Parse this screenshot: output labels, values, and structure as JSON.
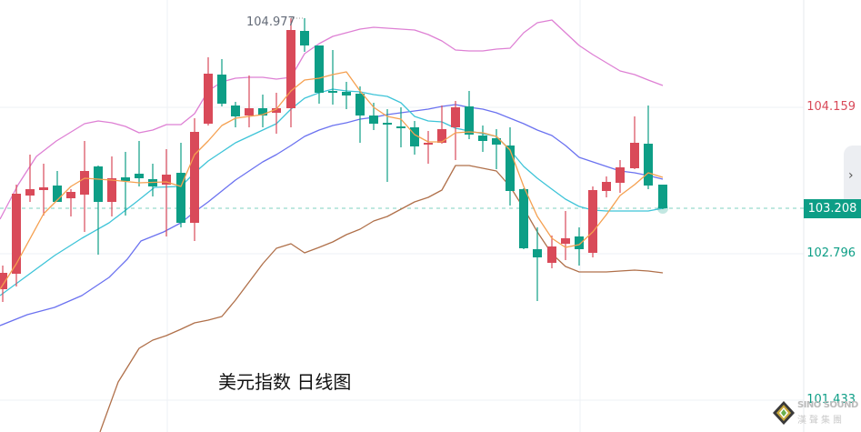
{
  "title": "美元指数 日线图",
  "colors": {
    "up": "#d94a59",
    "down": "#0d9e86",
    "ma_orange": "#f5a050",
    "ma_cyan": "#3ec4d8",
    "ma_blue": "#6b72f0",
    "boll_upper": "#de80d4",
    "boll_lower": "#b0704a",
    "grid": "#eef0f4",
    "last_line": "#7fd0c0"
  },
  "price_axis": {
    "labels": [
      {
        "value": "104.159",
        "color": "#d94a59"
      },
      {
        "value": "102.796",
        "color": "#0d9e86"
      },
      {
        "value": "101.433",
        "color": "#0d9e86"
      }
    ],
    "last_price": "103.208"
  },
  "max_marker": "104.977",
  "side_tab_icon": "chevron-right-icon",
  "logo": {
    "brand": "SINO SOUND",
    "brand_cn": "漢聲集團"
  },
  "chart_data": {
    "type": "candlestick",
    "title": "美元指数 日线图",
    "ylim": [
      101.433,
      105.1
    ],
    "y_ticks": [
      104.159,
      102.796,
      101.433
    ],
    "last_price": 103.208,
    "max_label": 104.977,
    "candles": [
      [
        3,
        300,
        318,
        292,
        332,
        "u"
      ],
      [
        18,
        213,
        301,
        203,
        315,
        "u"
      ],
      [
        33,
        208,
        215,
        170,
        222,
        "u"
      ],
      [
        48,
        206,
        209,
        180,
        237,
        "u"
      ],
      [
        63,
        204,
        222,
        188,
        222,
        "d"
      ],
      [
        78,
        211,
        218,
        208,
        238,
        "u"
      ],
      [
        93,
        188,
        214,
        155,
        255,
        "u"
      ],
      [
        108,
        183,
        222,
        182,
        280,
        "d"
      ],
      [
        123,
        196,
        222,
        172,
        238,
        "u"
      ],
      [
        138,
        195,
        199,
        167,
        237,
        "d"
      ],
      [
        153,
        191,
        196,
        155,
        205,
        "d"
      ],
      [
        168,
        197,
        205,
        180,
        216,
        "d"
      ],
      [
        183,
        192,
        203,
        164,
        260,
        "u"
      ],
      [
        199,
        190,
        245,
        157,
        250,
        "d"
      ],
      [
        214,
        145,
        245,
        130,
        265,
        "u"
      ],
      [
        229,
        81,
        136,
        63,
        138,
        "u"
      ],
      [
        244,
        82,
        114,
        65,
        117,
        "d"
      ],
      [
        259,
        116,
        128,
        112,
        140,
        "d"
      ],
      [
        274,
        119,
        127,
        83,
        140,
        "u"
      ],
      [
        289,
        119,
        127,
        104,
        140,
        "d"
      ],
      [
        304,
        119,
        124,
        102,
        147,
        "u"
      ],
      [
        320,
        33,
        119,
        20,
        140,
        "u"
      ],
      [
        335,
        34,
        50,
        20,
        57,
        "d"
      ],
      [
        351,
        50,
        102,
        50,
        114,
        "d"
      ],
      [
        366,
        100,
        102,
        55,
        115,
        "d"
      ],
      [
        381,
        101,
        105,
        90,
        120,
        "d"
      ],
      [
        396,
        103,
        127,
        95,
        157,
        "d"
      ],
      [
        411,
        127,
        136,
        113,
        143,
        "d"
      ],
      [
        426,
        135,
        137,
        120,
        200,
        "d"
      ],
      [
        441,
        139,
        141,
        118,
        162,
        "d"
      ],
      [
        456,
        140,
        161,
        133,
        170,
        "d"
      ],
      [
        471,
        157,
        159,
        144,
        180,
        "u"
      ],
      [
        486,
        142,
        157,
        116,
        158,
        "u"
      ],
      [
        501,
        118,
        140,
        111,
        176,
        "u"
      ],
      [
        516,
        117,
        148,
        100,
        153,
        "d"
      ],
      [
        531,
        149,
        155,
        138,
        167,
        "d"
      ],
      [
        546,
        152,
        159,
        142,
        186,
        "d"
      ],
      [
        561,
        160,
        210,
        140,
        226,
        "d"
      ],
      [
        576,
        208,
        273,
        207,
        274,
        "d"
      ],
      [
        591,
        274,
        283,
        250,
        331,
        "d"
      ],
      [
        607,
        271,
        289,
        259,
        295,
        "u"
      ],
      [
        622,
        262,
        268,
        232,
        286,
        "u"
      ],
      [
        637,
        260,
        274,
        250,
        292,
        "d"
      ],
      [
        652,
        209,
        278,
        205,
        283,
        "u"
      ],
      [
        667,
        200,
        210,
        194,
        217,
        "u"
      ],
      [
        682,
        184,
        201,
        176,
        212,
        "u"
      ],
      [
        698,
        157,
        185,
        128,
        186,
        "u"
      ],
      [
        713,
        158,
        204,
        116,
        208,
        "d"
      ],
      [
        729,
        203,
        229,
        203,
        230,
        "d"
      ]
    ],
    "candle_note": "each candle = [x_px, body_top_y, body_bottom_y, high_y, low_y, u=up(red)/d=down(green)]; price = 104.159 - (y-118)/118.1",
    "lines": {
      "ma_orange": [
        [
          0,
          318
        ],
        [
          18,
          290
        ],
        [
          48,
          235
        ],
        [
          78,
          205
        ],
        [
          93,
          196
        ],
        [
          123,
          198
        ],
        [
          153,
          201
        ],
        [
          183,
          200
        ],
        [
          199,
          205
        ],
        [
          214,
          170
        ],
        [
          229,
          155
        ],
        [
          244,
          138
        ],
        [
          259,
          130
        ],
        [
          274,
          128
        ],
        [
          289,
          126
        ],
        [
          304,
          120
        ],
        [
          320,
          100
        ],
        [
          335,
          88
        ],
        [
          351,
          86
        ],
        [
          366,
          82
        ],
        [
          381,
          79
        ],
        [
          396,
          100
        ],
        [
          411,
          118
        ],
        [
          426,
          128
        ],
        [
          441,
          131
        ],
        [
          456,
          148
        ],
        [
          471,
          156
        ],
        [
          486,
          156
        ],
        [
          501,
          146
        ],
        [
          516,
          145
        ],
        [
          531,
          146
        ],
        [
          546,
          150
        ],
        [
          561,
          165
        ],
        [
          576,
          205
        ],
        [
          591,
          238
        ],
        [
          607,
          262
        ],
        [
          622,
          272
        ],
        [
          637,
          269
        ],
        [
          652,
          255
        ],
        [
          667,
          236
        ],
        [
          682,
          215
        ],
        [
          698,
          203
        ],
        [
          713,
          190
        ],
        [
          729,
          195
        ]
      ],
      "ma_cyan": [
        [
          0,
          325
        ],
        [
          30,
          303
        ],
        [
          60,
          281
        ],
        [
          90,
          262
        ],
        [
          120,
          245
        ],
        [
          150,
          222
        ],
        [
          170,
          206
        ],
        [
          199,
          205
        ],
        [
          214,
          190
        ],
        [
          229,
          177
        ],
        [
          244,
          167
        ],
        [
          259,
          157
        ],
        [
          274,
          150
        ],
        [
          289,
          143
        ],
        [
          304,
          136
        ],
        [
          320,
          120
        ],
        [
          335,
          108
        ],
        [
          351,
          102
        ],
        [
          366,
          98
        ],
        [
          381,
          100
        ],
        [
          396,
          101
        ],
        [
          411,
          104
        ],
        [
          426,
          106
        ],
        [
          441,
          113
        ],
        [
          456,
          128
        ],
        [
          471,
          133
        ],
        [
          486,
          134
        ],
        [
          501,
          141
        ],
        [
          516,
          144
        ],
        [
          531,
          147
        ],
        [
          546,
          150
        ],
        [
          561,
          165
        ],
        [
          576,
          183
        ],
        [
          591,
          196
        ],
        [
          607,
          208
        ],
        [
          622,
          219
        ],
        [
          637,
          227
        ],
        [
          652,
          231
        ],
        [
          667,
          232
        ],
        [
          682,
          232
        ],
        [
          698,
          232
        ],
        [
          713,
          232
        ],
        [
          729,
          229
        ]
      ],
      "ma_blue": [
        [
          0,
          358
        ],
        [
          30,
          346
        ],
        [
          60,
          338
        ],
        [
          90,
          325
        ],
        [
          120,
          305
        ],
        [
          140,
          285
        ],
        [
          155,
          265
        ],
        [
          180,
          255
        ],
        [
          199,
          245
        ],
        [
          214,
          233
        ],
        [
          229,
          222
        ],
        [
          244,
          210
        ],
        [
          259,
          198
        ],
        [
          274,
          188
        ],
        [
          289,
          178
        ],
        [
          304,
          170
        ],
        [
          320,
          160
        ],
        [
          335,
          150
        ],
        [
          351,
          143
        ],
        [
          366,
          138
        ],
        [
          381,
          135
        ],
        [
          396,
          131
        ],
        [
          411,
          129
        ],
        [
          426,
          126
        ],
        [
          441,
          124
        ],
        [
          456,
          122
        ],
        [
          471,
          120
        ],
        [
          486,
          117
        ],
        [
          501,
          115
        ],
        [
          516,
          118
        ],
        [
          531,
          120
        ],
        [
          546,
          124
        ],
        [
          561,
          130
        ],
        [
          576,
          136
        ],
        [
          591,
          143
        ],
        [
          607,
          149
        ],
        [
          622,
          160
        ],
        [
          637,
          173
        ],
        [
          652,
          178
        ],
        [
          667,
          183
        ],
        [
          682,
          188
        ],
        [
          698,
          190
        ],
        [
          713,
          193
        ],
        [
          729,
          197
        ]
      ],
      "boll_upper": [
        [
          0,
          241
        ],
        [
          20,
          203
        ],
        [
          40,
          172
        ],
        [
          62,
          155
        ],
        [
          93,
          136
        ],
        [
          108,
          133
        ],
        [
          123,
          135
        ],
        [
          138,
          139
        ],
        [
          153,
          146
        ],
        [
          168,
          143
        ],
        [
          183,
          137
        ],
        [
          199,
          137
        ],
        [
          214,
          125
        ],
        [
          229,
          100
        ],
        [
          244,
          90
        ],
        [
          259,
          86
        ],
        [
          274,
          85
        ],
        [
          289,
          85
        ],
        [
          304,
          87
        ],
        [
          320,
          85
        ],
        [
          335,
          59
        ],
        [
          351,
          48
        ],
        [
          366,
          40
        ],
        [
          381,
          36
        ],
        [
          396,
          32
        ],
        [
          411,
          30
        ],
        [
          426,
          31
        ],
        [
          441,
          32
        ],
        [
          456,
          33
        ],
        [
          471,
          38
        ],
        [
          486,
          45
        ],
        [
          501,
          55
        ],
        [
          516,
          56
        ],
        [
          531,
          56
        ],
        [
          546,
          54
        ],
        [
          561,
          53
        ],
        [
          576,
          36
        ],
        [
          591,
          25
        ],
        [
          607,
          22
        ],
        [
          622,
          36
        ],
        [
          637,
          50
        ],
        [
          652,
          60
        ],
        [
          667,
          69
        ],
        [
          682,
          78
        ],
        [
          698,
          82
        ],
        [
          713,
          88
        ],
        [
          729,
          94
        ]
      ],
      "boll_lower": [
        [
          110,
          475
        ],
        [
          130,
          420
        ],
        [
          153,
          383
        ],
        [
          168,
          374
        ],
        [
          183,
          369
        ],
        [
          199,
          362
        ],
        [
          214,
          355
        ],
        [
          229,
          352
        ],
        [
          244,
          348
        ],
        [
          259,
          330
        ],
        [
          274,
          310
        ],
        [
          289,
          290
        ],
        [
          304,
          273
        ],
        [
          320,
          268
        ],
        [
          335,
          278
        ],
        [
          351,
          272
        ],
        [
          366,
          266
        ],
        [
          381,
          258
        ],
        [
          396,
          252
        ],
        [
          411,
          243
        ],
        [
          426,
          238
        ],
        [
          441,
          230
        ],
        [
          456,
          222
        ],
        [
          471,
          217
        ],
        [
          486,
          209
        ],
        [
          501,
          182
        ],
        [
          516,
          182
        ],
        [
          531,
          185
        ],
        [
          546,
          188
        ],
        [
          561,
          205
        ],
        [
          576,
          229
        ],
        [
          591,
          255
        ],
        [
          607,
          279
        ],
        [
          622,
          293
        ],
        [
          637,
          299
        ],
        [
          652,
          299
        ],
        [
          667,
          299
        ],
        [
          682,
          298
        ],
        [
          698,
          297
        ],
        [
          713,
          298
        ],
        [
          729,
          300
        ]
      ]
    }
  }
}
